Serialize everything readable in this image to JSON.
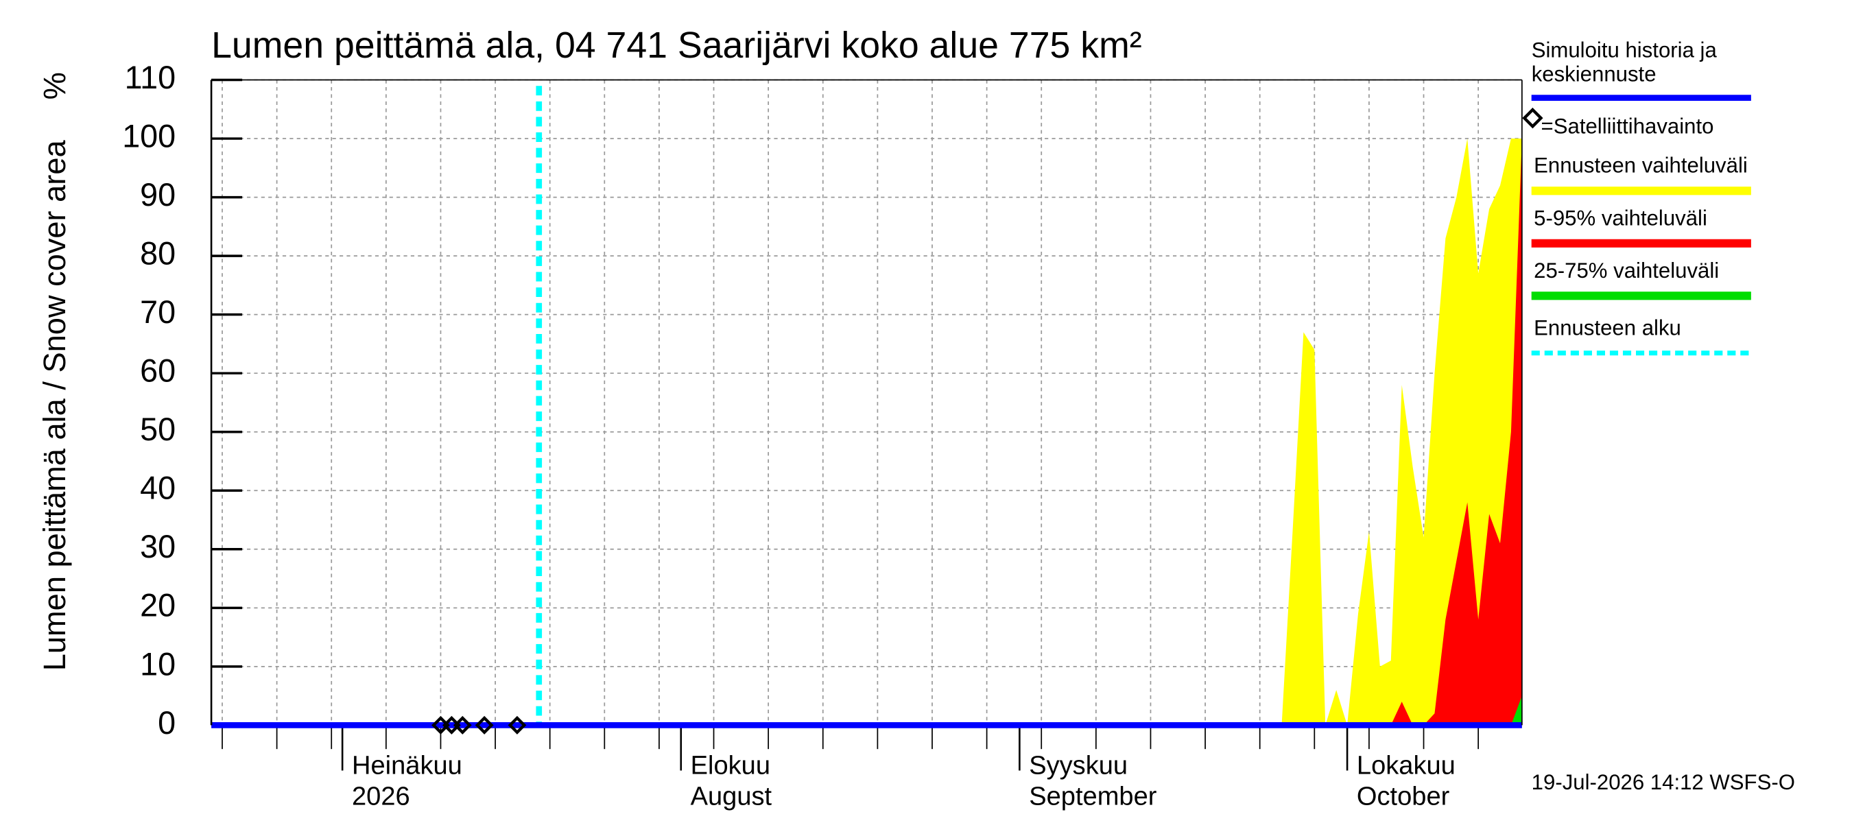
{
  "chart_data": {
    "type": "area",
    "title": "Lumen peittämä ala, 04 741 Saarijärvi koko alue 775 km²",
    "y_label": "Lumen peittämä ala / Snow cover area",
    "y_unit": "%",
    "footer": "19-Jul-2026 14:12 WSFS-O",
    "xlim": [
      "2026-06-19",
      "2026-10-17"
    ],
    "ylim": [
      0,
      110
    ],
    "yticks": [
      0,
      10,
      20,
      30,
      40,
      50,
      60,
      70,
      80,
      90,
      100,
      110
    ],
    "xticks": [
      {
        "value": "2026-07-01",
        "label": "Heinäkuu"
      },
      {
        "value": "2026-08-01",
        "label": "Elokuu"
      },
      {
        "value": "2026-09-01",
        "label": "Syyskuu"
      },
      {
        "value": "2026-10-01",
        "label": "Lokakuu"
      }
    ],
    "xtick_sublabels": [
      "2026",
      "August",
      "September",
      "October"
    ],
    "xgrid": [
      "2026-06-20",
      "2026-06-25",
      "2026-06-30",
      "2026-07-05",
      "2026-07-10",
      "2026-07-15",
      "2026-07-20",
      "2026-07-25",
      "2026-07-30",
      "2026-08-04",
      "2026-08-09",
      "2026-08-14",
      "2026-08-19",
      "2026-08-24",
      "2026-08-29",
      "2026-09-03",
      "2026-09-08",
      "2026-09-13",
      "2026-09-18",
      "2026-09-23",
      "2026-09-28",
      "2026-10-03",
      "2026-10-08",
      "2026-10-13"
    ],
    "grid": true,
    "x": [
      "2026-09-25",
      "2026-09-26",
      "2026-09-27",
      "2026-09-28",
      "2026-09-29",
      "2026-09-30",
      "2026-10-01",
      "2026-10-02",
      "2026-10-03",
      "2026-10-04",
      "2026-10-05",
      "2026-10-06",
      "2026-10-07",
      "2026-10-08",
      "2026-10-09",
      "2026-10-10",
      "2026-10-11",
      "2026-10-12",
      "2026-10-13",
      "2026-10-14",
      "2026-10-15",
      "2026-10-16",
      "2026-10-17"
    ],
    "series": [
      {
        "name": "Ennusteen vaihteluväli",
        "color": "#ffff00",
        "values": [
          0,
          33,
          67,
          64,
          0,
          6,
          0,
          19,
          33,
          10,
          11,
          58,
          44,
          32,
          60,
          83,
          90,
          100,
          77,
          88,
          92,
          100,
          100
        ]
      },
      {
        "name": "5-95% vaihteluväli",
        "color": "#ff0000",
        "values": [
          0,
          0,
          0,
          0,
          0,
          0,
          0,
          0,
          0,
          0,
          0,
          4,
          0,
          0,
          2,
          18,
          28,
          38,
          18,
          36,
          31,
          50,
          100
        ]
      },
      {
        "name": "25-75% vaihteluväli",
        "color": "#00dd00",
        "values": [
          0,
          0,
          0,
          0,
          0,
          0,
          0,
          0,
          0,
          0,
          0,
          0,
          0,
          0,
          0,
          0,
          0,
          0,
          0,
          0,
          0,
          0,
          5
        ]
      }
    ],
    "median": {
      "name": "Simuloitu historia ja keskiennuste",
      "color": "#0000ff",
      "x": [
        "2026-06-19",
        "2026-10-17"
      ],
      "values": [
        0,
        0
      ]
    },
    "observations": {
      "name": "=Satelliittihavainto",
      "x": [
        "2026-07-10",
        "2026-07-11",
        "2026-07-12",
        "2026-07-14",
        "2026-07-17"
      ],
      "values": [
        0,
        0,
        0,
        0,
        0
      ]
    },
    "forecast_start": {
      "name": "Ennusteen alku",
      "color": "#00ffff",
      "x": "2026-07-19"
    }
  }
}
